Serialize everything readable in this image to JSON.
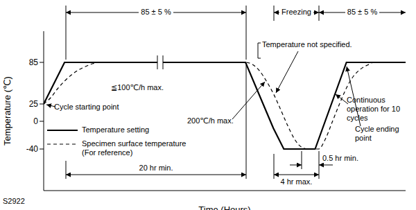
{
  "chart_data": {
    "type": "line",
    "x_label": "Time (Hours)",
    "y_label": "Temperature (℃)",
    "xlim": [
      0,
      52
    ],
    "ylim": [
      -100,
      130
    ],
    "yticks": [
      -40,
      0,
      25,
      85
    ],
    "tick_labels": "y",
    "legend": "left",
    "annotations": [
      "85 ± 5 %",
      "Freezing",
      "85 ± 5 %",
      "Temperature not specified.",
      "≦100℃/h max.",
      "Cycle starting point",
      "200℃/h max.",
      "Continuous operation for 10 cycles",
      "Cycle ending point",
      "20 hr min.",
      "4 hr max.",
      "0.5 hr min.",
      "S2922"
    ],
    "series": [
      {
        "name": "Temperature setting",
        "color": "#000000",
        "line_style": "solid",
        "x": [
          0,
          3,
          29,
          33,
          34.5,
          39,
          43.5,
          52
        ],
        "values": [
          25,
          85,
          85,
          -10,
          -40,
          -40,
          85,
          85
        ]
      },
      {
        "name": "Specimen surface temperature (For reference)",
        "color": "#000000",
        "line_style": "dashed",
        "x": [
          0,
          1,
          2,
          3,
          4,
          5,
          6,
          7,
          8,
          29,
          30,
          31,
          32,
          33,
          34,
          35,
          36,
          37,
          38,
          39.5,
          40.5,
          41.5,
          42.5,
          43.5,
          44.5,
          45.5,
          46.5,
          47.5,
          52
        ],
        "values": [
          25,
          34,
          47,
          58,
          67,
          74,
          79,
          83,
          85,
          85,
          82,
          73,
          58,
          40,
          18,
          -5,
          -25,
          -37,
          -40,
          -40,
          -25,
          0,
          25,
          48,
          65,
          75,
          81,
          85,
          85
        ]
      }
    ]
  }
}
